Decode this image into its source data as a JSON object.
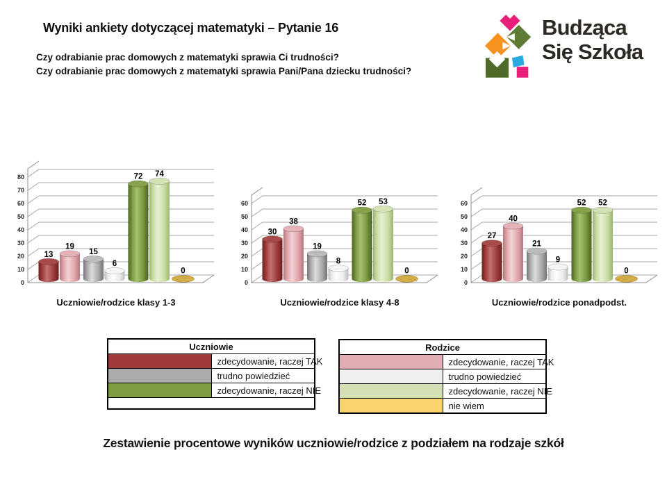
{
  "header": {
    "title": "Wyniki ankiety dotyczącej matematyki – Pytanie 16",
    "question_students": "Czy odrabianie prac domowych z matematyki sprawia Ci trudności?",
    "question_parents": "Czy odrabianie prac domowych z matematyki sprawia Pani/Pana dziecku trudności?"
  },
  "logo": {
    "line1": "Budząca",
    "line2": "Się Szkoła",
    "colors": {
      "pink": "#e91e79",
      "orange": "#f6921e",
      "green": "#5f7a33",
      "darkgreen": "#4e6a28",
      "blue": "#29a9e1",
      "text": "#2d2a26"
    }
  },
  "palette": [
    {
      "name": "uczniowie-zdecydowanie-raczej-tak",
      "main": "#9d3a3a",
      "light": "#c47272",
      "dark": "#6b2020",
      "top": "#a84a4a"
    },
    {
      "name": "rodzice-zdecydowanie-raczej-tak",
      "main": "#dfa3a8",
      "light": "#f3d4d6",
      "dark": "#b07a80",
      "top": "#e5b3b7"
    },
    {
      "name": "uczniowie-trudno-powiedziec",
      "main": "#a9a9a9",
      "light": "#dcdcdc",
      "dark": "#757575",
      "top": "#bcbcbc"
    },
    {
      "name": "rodzice-trudno-powiedziec",
      "main": "#ededed",
      "light": "#fdfdfd",
      "dark": "#bdbdbd",
      "top": "#f5f5f5"
    },
    {
      "name": "uczniowie-zdecydowanie-raczej-nie",
      "main": "#77963e",
      "light": "#a6c06f",
      "dark": "#4c6322",
      "top": "#86a34c"
    },
    {
      "name": "rodzice-zdecydowanie-raczej-nie",
      "main": "#c9dca4",
      "light": "#e7f0d3",
      "dark": "#9cb56f",
      "top": "#d4e3b6"
    },
    {
      "name": "rodzice-nie-wiem",
      "main": "#d2ac46",
      "dark": "#a8842f",
      "flat": true
    }
  ],
  "chart_data": [
    {
      "type": "bar",
      "title": "Uczniowie/rodzice klasy 1-3",
      "categories": [
        "uczniowie: zdecydowanie, raczej TAK",
        "rodzice: zdecydowanie, raczej TAK",
        "uczniowie: trudno powiedzieć",
        "rodzice: trudno powiedzieć",
        "uczniowie: zdecydowanie, raczej NIE",
        "rodzice: zdecydowanie, raczej NIE",
        "rodzice: nie wiem"
      ],
      "values": [
        13,
        19,
        15,
        6,
        72,
        74,
        0
      ],
      "ylim": [
        0,
        80
      ],
      "ytick_step": 10,
      "unit": "%",
      "grid": true,
      "style": "3d-cylinder"
    },
    {
      "type": "bar",
      "title": "Uczniowie/rodzice klasy 4-8",
      "categories": [
        "uczniowie: zdecydowanie, raczej TAK",
        "rodzice: zdecydowanie, raczej TAK",
        "uczniowie: trudno powiedzieć",
        "rodzice: trudno powiedzieć",
        "uczniowie: zdecydowanie, raczej NIE",
        "rodzice: zdecydowanie, raczej NIE",
        "rodzice: nie wiem"
      ],
      "values": [
        30,
        38,
        19,
        8,
        52,
        53,
        0
      ],
      "ylim": [
        0,
        60
      ],
      "ytick_step": 10,
      "unit": "%",
      "grid": true,
      "style": "3d-cylinder"
    },
    {
      "type": "bar",
      "title": "Uczniowie/rodzice ponadpodst.",
      "categories": [
        "uczniowie: zdecydowanie, raczej TAK",
        "rodzice: zdecydowanie, raczej TAK",
        "uczniowie: trudno powiedzieć",
        "rodzice: trudno powiedzieć",
        "uczniowie: zdecydowanie, raczej NIE",
        "rodzice: zdecydowanie, raczej NIE",
        "rodzice: nie wiem"
      ],
      "values": [
        27,
        40,
        21,
        9,
        52,
        52,
        0
      ],
      "ylim": [
        0,
        60
      ],
      "ytick_step": 10,
      "unit": "%",
      "grid": true,
      "style": "3d-cylinder"
    }
  ],
  "legend_tables": [
    {
      "title": "Uczniowie",
      "rows": [
        {
          "swatch": "#9e3b3b",
          "label": "zdecydowanie, raczej TAK"
        },
        {
          "swatch": "#ababab",
          "label": "trudno powiedzieć"
        },
        {
          "swatch": "#7e9c42",
          "label": "zdecydowanie, raczej NIE"
        }
      ],
      "empty_row": true
    },
    {
      "title": "Rodzice",
      "rows": [
        {
          "swatch": "#dfadb2",
          "label": "zdecydowanie, raczej TAK"
        },
        {
          "swatch": "#efefef",
          "label": "trudno powiedzieć"
        },
        {
          "swatch": "#d3e0b5",
          "label": "zdecydowanie, raczej NIE"
        },
        {
          "swatch": "#f8d36e",
          "label": "nie wiem"
        }
      ],
      "empty_row": false
    }
  ],
  "footer": {
    "caption": "Zestawienie procentowe wyników uczniowie/rodzice z podziałem na rodzaje szkół"
  }
}
